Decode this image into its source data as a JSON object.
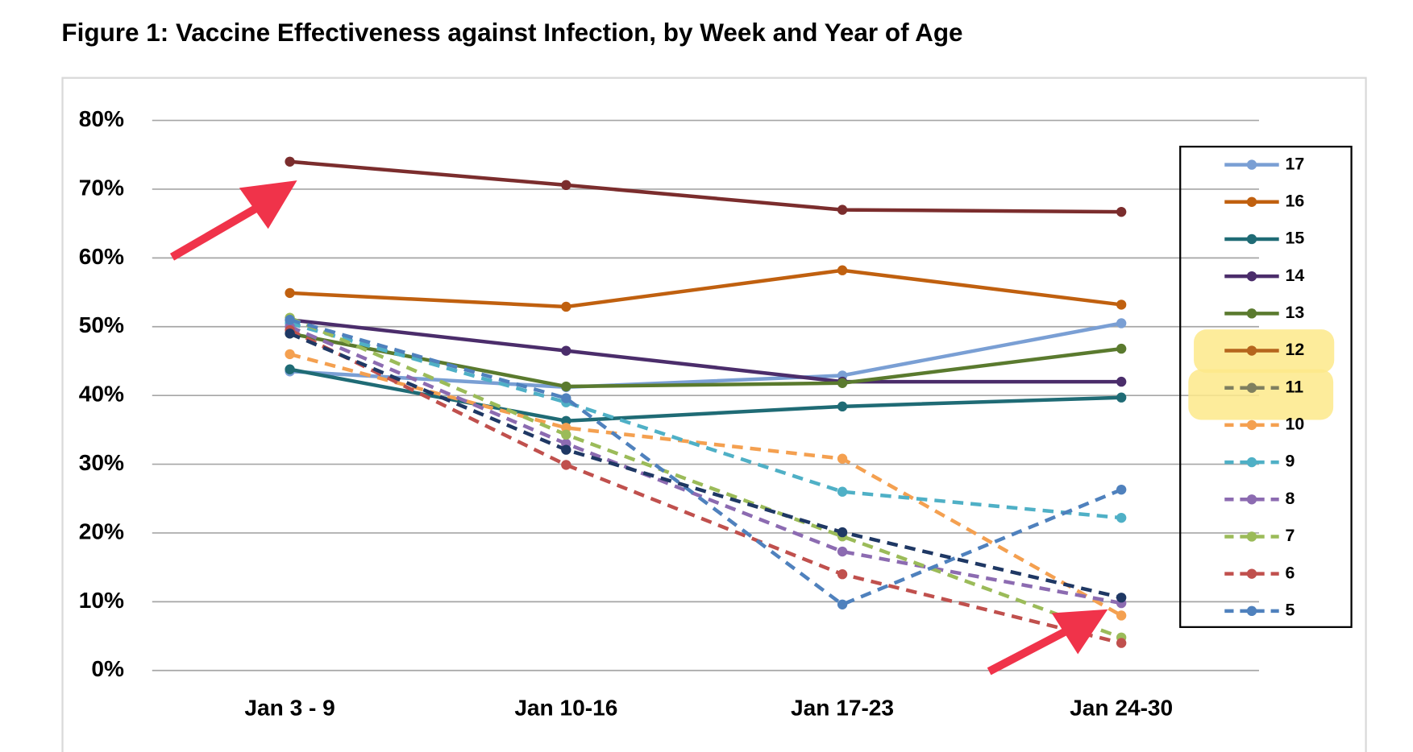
{
  "chart_data": {
    "type": "line",
    "title": "Figure 1: Vaccine Effectiveness against Infection, by Week and Year of Age",
    "categories": [
      "Jan 3 - 9",
      "Jan 10-16",
      "Jan 17-23",
      "Jan 24-30"
    ],
    "ylim": [
      0,
      80
    ],
    "yticks": [
      {
        "value": 0,
        "label": "0%"
      },
      {
        "value": 10,
        "label": "10%"
      },
      {
        "value": 20,
        "label": "20%"
      },
      {
        "value": 30,
        "label": "30%"
      },
      {
        "value": 40,
        "label": "40%"
      },
      {
        "value": 50,
        "label": "50%"
      },
      {
        "value": 60,
        "label": "60%"
      },
      {
        "value": 70,
        "label": "70%"
      },
      {
        "value": 80,
        "label": "80%"
      }
    ],
    "grid": true,
    "legend": "right",
    "series": [
      {
        "name": "17",
        "color": "#7a9fd4",
        "dashed": false,
        "values": [
          43.5,
          41.2,
          42.9,
          50.5
        ]
      },
      {
        "name": "16",
        "color": "#c0600f",
        "dashed": false,
        "values": [
          54.9,
          52.9,
          58.2,
          53.2
        ]
      },
      {
        "name": "15",
        "color": "#1f6b75",
        "dashed": false,
        "values": [
          43.8,
          36.3,
          38.4,
          39.7
        ]
      },
      {
        "name": "14",
        "color": "#4b2d6b",
        "dashed": false,
        "values": [
          51,
          46.5,
          42,
          42
        ]
      },
      {
        "name": "13",
        "color": "#5a7a2e",
        "dashed": false,
        "values": [
          49,
          41.3,
          41.8,
          46.8
        ]
      },
      {
        "name": "12",
        "color": "#b5651d",
        "dashed": false,
        "values": [
          null,
          null,
          null,
          null
        ]
      },
      {
        "name": "11",
        "color": "#7f7f5f",
        "dashed": true,
        "values": [
          null,
          null,
          null,
          null
        ]
      },
      {
        "name": "10",
        "color": "#f4a050",
        "dashed": true,
        "values": [
          46,
          35.3,
          30.8,
          8
        ]
      },
      {
        "name": "9",
        "color": "#4fb0c6",
        "dashed": true,
        "values": [
          50.5,
          39,
          26,
          22.2
        ]
      },
      {
        "name": "8",
        "color": "#8c6bb1",
        "dashed": true,
        "values": [
          50,
          33,
          17.3,
          9.8
        ]
      },
      {
        "name": "7",
        "color": "#9bbb59",
        "dashed": true,
        "values": [
          51.3,
          34.3,
          19.5,
          4.8
        ]
      },
      {
        "name": "6",
        "color": "#c0504d",
        "dashed": true,
        "values": [
          49.5,
          29.9,
          14,
          4
        ]
      },
      {
        "name": "5",
        "color": "#4f81bd",
        "dashed": true,
        "values": [
          51,
          39.6,
          9.6,
          26.3
        ]
      },
      {
        "color": "#7b2d2d",
        "dashed": false,
        "values": [
          74,
          70.6,
          67,
          66.7
        ]
      },
      {
        "color": "#1f3864",
        "dashed": true,
        "values": [
          49,
          32.1,
          20.1,
          10.6
        ]
      }
    ]
  }
}
